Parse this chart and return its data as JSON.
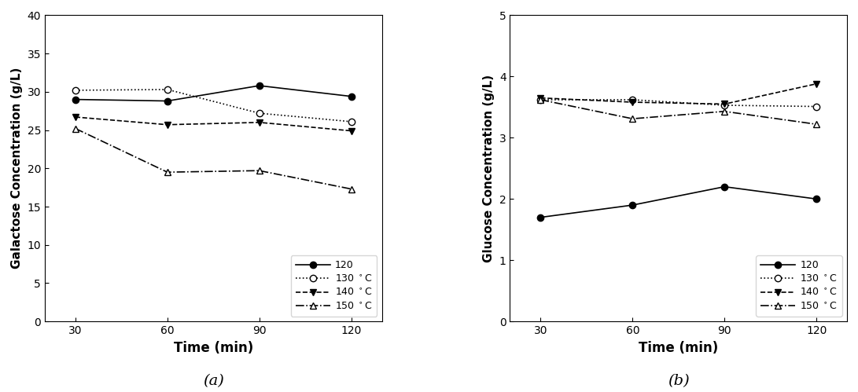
{
  "time": [
    30,
    60,
    90,
    120
  ],
  "galactose": {
    "120C": [
      29.0,
      28.8,
      30.8,
      29.4
    ],
    "130C": [
      30.2,
      30.3,
      27.2,
      26.1
    ],
    "140C": [
      26.7,
      25.7,
      26.0,
      24.9
    ],
    "150C": [
      25.2,
      19.5,
      19.7,
      17.3
    ]
  },
  "glucose": {
    "120C": [
      1.7,
      1.9,
      2.2,
      2.0
    ],
    "130C": [
      3.62,
      3.62,
      3.53,
      3.51
    ],
    "140C": [
      3.65,
      3.58,
      3.55,
      3.88
    ],
    "150C": [
      3.62,
      3.31,
      3.43,
      3.22
    ]
  },
  "ylabel_a": "Galactose Concentration (g/L)",
  "ylabel_b": "Glucose Concentration (g/L)",
  "xlabel": "Time (min)",
  "label_a": "(a)",
  "label_b": "(b)",
  "ylim_a": [
    0,
    40
  ],
  "ylim_b": [
    0,
    5
  ],
  "yticks_a": [
    0,
    5,
    10,
    15,
    20,
    25,
    30,
    35,
    40
  ],
  "yticks_b": [
    0,
    1,
    2,
    3,
    4,
    5
  ],
  "xticks": [
    30,
    60,
    90,
    120
  ],
  "xlim": [
    20,
    130
  ],
  "legend_labels": [
    "120",
    "130 °C",
    "140 °C",
    "150 °C"
  ],
  "bg_color": "#ffffff",
  "plot_bg": "#ffffff",
  "line_styles": [
    {
      "key": "120C",
      "linestyle": "-",
      "marker": "o",
      "filled": true
    },
    {
      "key": "130C",
      "linestyle": ":",
      "marker": "o",
      "filled": false
    },
    {
      "key": "140C",
      "linestyle": "--",
      "marker": "v",
      "filled": true
    },
    {
      "key": "150C",
      "linestyle": "-.",
      "marker": "^",
      "filled": false
    }
  ]
}
